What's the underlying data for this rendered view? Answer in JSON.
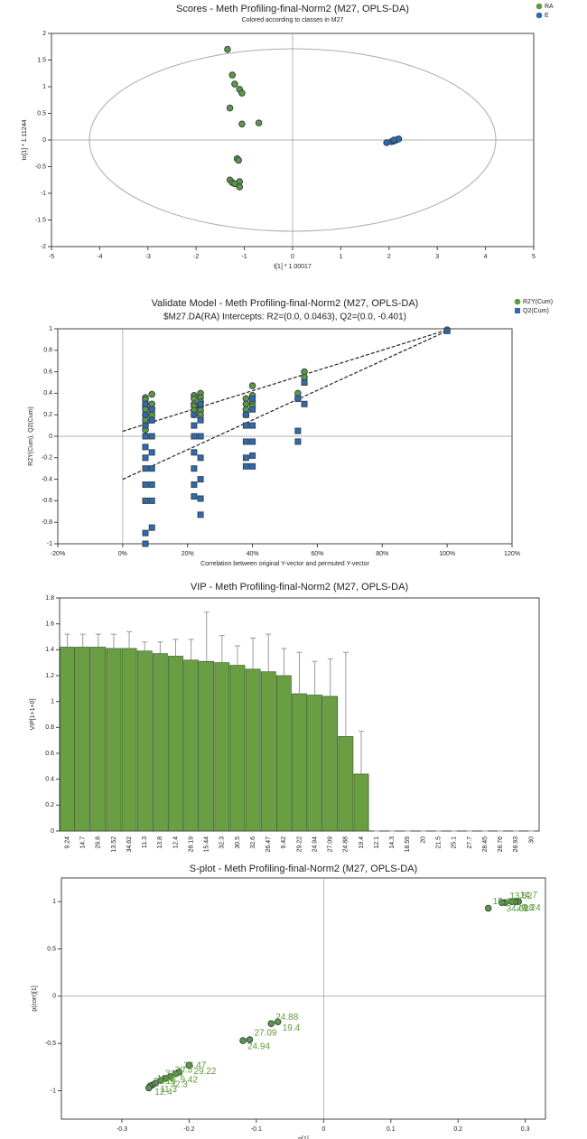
{
  "chart_data": [
    {
      "type": "scatter",
      "title": "Scores - Meth Profiling-final-Norm2 (M27, OPLS-DA)",
      "subtitle": "Colored according to classes in M27",
      "x_label": "t[1] * 1.00017",
      "y_label": "to[1] * 1.11244",
      "xlim": [
        -5,
        5
      ],
      "xticks": [
        -5,
        -4,
        -3,
        -2,
        -1,
        0,
        1,
        2,
        3,
        4,
        5
      ],
      "ylim": [
        -2,
        2
      ],
      "yticks": [
        -2,
        -1.5,
        -1,
        -0.5,
        0,
        0.5,
        1,
        1.5,
        2
      ],
      "zero_lines": true,
      "legend": "top-right",
      "series": [
        {
          "name": "RA",
          "color": "#5e9a3c",
          "marker": "circle",
          "x": [
            -1.35,
            -1.25,
            -1.2,
            -1.1,
            -1.05,
            -1.3,
            -1.05,
            -0.7,
            -1.15,
            -1.12,
            -1.3,
            -1.25,
            -1.1,
            -1.2,
            -1.1
          ],
          "values": [
            1.7,
            1.22,
            1.05,
            0.95,
            0.88,
            0.6,
            0.3,
            0.32,
            -0.35,
            -0.38,
            -0.75,
            -0.8,
            -0.78,
            -0.82,
            -0.88
          ]
        },
        {
          "name": "E",
          "color": "#2e6bb0",
          "marker": "circle",
          "x": [
            1.95,
            2.05,
            2.1,
            2.15,
            2.2,
            2.1
          ],
          "values": [
            -0.05,
            -0.03,
            -0.02,
            0.0,
            0.02,
            0.0
          ]
        }
      ]
    },
    {
      "type": "scatter",
      "title": "Validate Model - Meth Profiling-final-Norm2 (M27, OPLS-DA)",
      "subtitle": "$M27.DA(RA) Intercepts: R2=(0.0, 0.0463), Q2=(0.0, -0.401)",
      "x_label": "Correlation between original Y-vector and permuted Y-vector",
      "y_label": "R2Y(Cum), Q2(Cum)",
      "xlim": [
        -20,
        120
      ],
      "xticks": [
        {
          "value": -20,
          "label": "-20%"
        },
        {
          "value": 0,
          "label": "0%"
        },
        {
          "value": 20,
          "label": "20%"
        },
        {
          "value": 40,
          "label": "40%"
        },
        {
          "value": 60,
          "label": "60%"
        },
        {
          "value": 80,
          "label": "80%"
        },
        {
          "value": 100,
          "label": "100%"
        },
        {
          "value": 120,
          "label": "120%"
        }
      ],
      "ylim": [
        -1,
        1
      ],
      "yticks": [
        -1,
        -0.8,
        -0.6,
        -0.4,
        -0.2,
        0,
        0.2,
        0.4,
        0.6,
        0.8,
        1
      ],
      "zero_lines": true,
      "legend": "top-right",
      "series": [
        {
          "name": "R2Y(Cum)",
          "color": "#5e9a3c",
          "marker": "circle",
          "x": [
            7,
            7,
            7,
            7,
            7,
            7,
            7,
            7,
            7,
            9,
            9,
            9,
            9,
            9,
            22,
            22,
            22,
            22,
            22,
            22,
            24,
            24,
            24,
            24,
            24,
            24,
            38,
            38,
            38,
            38,
            40,
            40,
            40,
            40,
            54,
            54,
            56,
            56,
            100
          ],
          "values": [
            0.36,
            0.34,
            0.3,
            0.28,
            0.25,
            0.2,
            0.15,
            0.1,
            0.06,
            0.39,
            0.3,
            0.25,
            0.2,
            0.15,
            0.38,
            0.35,
            0.3,
            0.28,
            0.24,
            0.2,
            0.4,
            0.36,
            0.32,
            0.28,
            0.24,
            0.2,
            0.35,
            0.3,
            0.25,
            0.2,
            0.47,
            0.38,
            0.32,
            0.28,
            0.4,
            0.35,
            0.6,
            0.55,
            0.99
          ]
        },
        {
          "name": "Q2(Cum)",
          "color": "#2e6bb0",
          "marker": "square",
          "x": [
            7,
            7,
            7,
            7,
            7,
            7,
            7,
            7,
            7,
            7,
            7,
            9,
            9,
            9,
            9,
            9,
            9,
            9,
            9,
            22,
            22,
            22,
            22,
            22,
            22,
            22,
            24,
            24,
            24,
            24,
            24,
            24,
            24,
            38,
            38,
            38,
            38,
            38,
            40,
            40,
            40,
            40,
            40,
            40,
            54,
            54,
            54,
            56,
            56,
            100
          ],
          "values": [
            -1.0,
            -0.9,
            -0.6,
            -0.45,
            -0.3,
            -0.2,
            -0.1,
            0.0,
            0.1,
            0.2,
            0.3,
            -0.85,
            -0.6,
            -0.45,
            -0.3,
            -0.15,
            0.0,
            0.15,
            0.25,
            -0.56,
            -0.45,
            -0.3,
            -0.15,
            0.0,
            0.1,
            0.2,
            -0.73,
            -0.58,
            -0.4,
            -0.2,
            0.0,
            0.15,
            0.3,
            -0.28,
            -0.2,
            -0.05,
            0.1,
            0.2,
            -0.28,
            -0.18,
            -0.05,
            0.1,
            0.25,
            0.35,
            -0.05,
            0.05,
            0.35,
            0.3,
            0.5,
            0.98
          ]
        }
      ],
      "fit_lines": [
        {
          "x": [
            0,
            100
          ],
          "values": [
            0.0463,
            0.99
          ]
        },
        {
          "x": [
            0,
            100
          ],
          "values": [
            -0.401,
            0.98
          ]
        }
      ]
    },
    {
      "type": "bar",
      "title": "VIP - Meth Profiling-final-Norm2 (M27, OPLS-DA)",
      "y_label": "VIP[1+1+0]",
      "categories": [
        "9.24",
        "14.7",
        "29.8",
        "13.52",
        "34.62",
        "11.3",
        "13.8",
        "12.4",
        "28.19",
        "15.44",
        "32.3",
        "30.5",
        "32.6",
        "26.47",
        "9.42",
        "29.22",
        "24.94",
        "27.09",
        "24.88",
        "19.4",
        "12.1",
        "14.3",
        "18.59",
        "20",
        "21.5",
        "25.1",
        "27.7",
        "28.45",
        "28.76",
        "28.93",
        "30"
      ],
      "values": [
        1.42,
        1.42,
        1.42,
        1.41,
        1.41,
        1.39,
        1.37,
        1.35,
        1.32,
        1.31,
        1.3,
        1.28,
        1.25,
        1.23,
        1.2,
        1.06,
        1.05,
        1.04,
        0.73,
        0.44,
        0,
        0,
        0,
        0,
        0,
        0,
        0,
        0,
        0,
        0,
        0
      ],
      "errors": [
        0.1,
        0.1,
        0.1,
        0.11,
        0.13,
        0.07,
        0.09,
        0.13,
        0.16,
        0.38,
        0.21,
        0.15,
        0.24,
        0.29,
        0.21,
        0.32,
        0.26,
        0.29,
        0.65,
        0.33,
        0,
        0,
        0,
        0,
        0,
        0,
        0,
        0,
        0,
        0,
        0
      ],
      "color": "#6a9e42",
      "ylim": [
        0,
        1.8
      ],
      "yticks": [
        0,
        0.2,
        0.4,
        0.6,
        0.8,
        1,
        1.2,
        1.4,
        1.6,
        1.8
      ]
    },
    {
      "type": "scatter",
      "title": "S-plot - Meth Profiling-final-Norm2 (M27, OPLS-DA)",
      "x_label": "p[1]",
      "y_label": "p(corr)[1]",
      "xlim": [
        -0.39,
        0.33
      ],
      "xticks": [
        -0.3,
        -0.2,
        -0.1,
        0,
        0.1,
        0.2,
        0.3
      ],
      "ylim": [
        -1.3,
        1.25
      ],
      "yticks": [
        -1,
        -0.5,
        0,
        0.5,
        1
      ],
      "zero_lines": true,
      "series": [
        {
          "color": "#5e9a3c",
          "marker": "circle",
          "labels": [
            "9.24",
            "14.7",
            "29.8",
            "13.52",
            "34.62",
            "15.44",
            "19.4",
            "24.88",
            "24.94",
            "27.09",
            "29.22",
            "26.47",
            "9.42",
            "30.5",
            "32.3",
            "32.6",
            "11.3",
            "13.8",
            "12.4",
            "28.19"
          ],
          "x": [
            0.29,
            0.285,
            0.28,
            0.27,
            0.265,
            0.245,
            -0.068,
            -0.078,
            -0.12,
            -0.11,
            -0.2,
            -0.215,
            -0.22,
            -0.228,
            -0.235,
            -0.242,
            -0.25,
            -0.255,
            -0.258,
            -0.26
          ],
          "values": [
            1.0,
            1.0,
            1.0,
            0.99,
            0.99,
            0.93,
            -0.27,
            -0.29,
            -0.47,
            -0.46,
            -0.73,
            -0.8,
            -0.82,
            -0.85,
            -0.87,
            -0.89,
            -0.92,
            -0.94,
            -0.95,
            -0.97
          ]
        }
      ]
    }
  ]
}
